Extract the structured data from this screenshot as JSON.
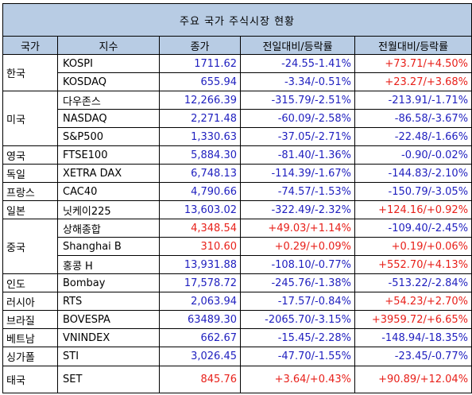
{
  "title": "주요 국가 주식시장 현황",
  "headers": [
    "국가",
    "지수",
    "종가",
    "전일대비/등락률",
    "전월대비/등락률"
  ],
  "colors": {
    "up": "#e8201a",
    "down": "#1f1fbf",
    "header_bg": "#b8cce4"
  },
  "rows": [
    {
      "country": "한국",
      "index": "KOSPI",
      "close": "1711.62",
      "close_dir": "down",
      "daily": "-24.55-1.41%",
      "daily_dir": "down",
      "monthly": "+73.71/+4.50%",
      "monthly_dir": "up"
    },
    {
      "country": "",
      "index": "KOSDAQ",
      "close": "655.94",
      "close_dir": "down",
      "daily": "-3.34/-0.51%",
      "daily_dir": "down",
      "monthly": "+23.27/+3.68%",
      "monthly_dir": "up"
    },
    {
      "country": "",
      "index": "다우존스",
      "close": "12,266.39",
      "close_dir": "down",
      "daily": "-315.79/-2.51%",
      "daily_dir": "down",
      "monthly": "-213.91/-1.71%",
      "monthly_dir": "down"
    },
    {
      "country": "미국",
      "index": "NASDAQ",
      "close": "2,271.48",
      "close_dir": "down",
      "daily": "-60.09/-2.58%",
      "daily_dir": "down",
      "monthly": "-86.58/-3.67%",
      "monthly_dir": "down"
    },
    {
      "country": "",
      "index": "S&P500",
      "close": "1,330.63",
      "close_dir": "down",
      "daily": "-37.05/-2.71%",
      "daily_dir": "down",
      "monthly": "-22.48/-1.66%",
      "monthly_dir": "down"
    },
    {
      "country": "영국",
      "index": "FTSE100",
      "close": "5,884.30",
      "close_dir": "down",
      "daily": "-81.40/-1.36%",
      "daily_dir": "down",
      "monthly": "-0.90/-0.02%",
      "monthly_dir": "down"
    },
    {
      "country": "독일",
      "index": "XETRA DAX",
      "close": "6,748.13",
      "close_dir": "down",
      "daily": "-114.39/-1.67%",
      "daily_dir": "down",
      "monthly": "-144.83/-2.10%",
      "monthly_dir": "down"
    },
    {
      "country": "프랑스",
      "index": "CAC40",
      "close": "4,790.66",
      "close_dir": "down",
      "daily": "-74.57/-1.53%",
      "daily_dir": "down",
      "monthly": "-150.79/-3.05%",
      "monthly_dir": "down"
    },
    {
      "country": "일본",
      "index": "닛케이225",
      "close": "13,603.02",
      "close_dir": "down",
      "daily": "-322.49/-2.32%",
      "daily_dir": "down",
      "monthly": "+124.16/+0.92%",
      "monthly_dir": "up"
    },
    {
      "country": "",
      "index": "상해종합",
      "close": "4,348.54",
      "close_dir": "up",
      "daily": "+49.03/+1.14%",
      "daily_dir": "up",
      "monthly": "-109.40/-2.45%",
      "monthly_dir": "down"
    },
    {
      "country": "중국",
      "index": "Shanghai B",
      "close": "310.60",
      "close_dir": "up",
      "daily": "+0.29/+0.09%",
      "daily_dir": "up",
      "monthly": "+0.19/+0.06%",
      "monthly_dir": "up"
    },
    {
      "country": "",
      "index": "홍콩 H",
      "close": "13,931.88",
      "close_dir": "down",
      "daily": "-108.10/-0.77%",
      "daily_dir": "down",
      "monthly": "+552.70/+4.13%",
      "monthly_dir": "up"
    },
    {
      "country": "인도",
      "index": "Bombay",
      "close": "17,578.72",
      "close_dir": "down",
      "daily": "-245.76/-1.38%",
      "daily_dir": "down",
      "monthly": "-513.22/-2.84%",
      "monthly_dir": "down"
    },
    {
      "country": "러시아",
      "index": "RTS",
      "close": "2,063.94",
      "close_dir": "down",
      "daily": "-17.57/-0.84%",
      "daily_dir": "down",
      "monthly": "+54.23/+2.70%",
      "monthly_dir": "up"
    },
    {
      "country": "브라질",
      "index": "BOVESPA",
      "close": "63489.30",
      "close_dir": "down",
      "daily": "-2065.70/-3.15%",
      "daily_dir": "down",
      "monthly": "+3959.72/+6.65%",
      "monthly_dir": "up"
    },
    {
      "country": "베트남",
      "index": "VNINDEX",
      "close": "662.67",
      "close_dir": "down",
      "daily": "-15.45/-2.28%",
      "daily_dir": "down",
      "monthly": "-148.94/-18.35%",
      "monthly_dir": "down"
    },
    {
      "country": "싱가폴",
      "index": "STI",
      "close": "3,026.45",
      "close_dir": "down",
      "daily": "-47.70/-1.55%",
      "daily_dir": "down",
      "monthly": "-23.45/-0.77%",
      "monthly_dir": "down"
    },
    {
      "country": "태국",
      "index": "SET",
      "close": "845.76",
      "close_dir": "up",
      "daily": "+3.64/+0.43%",
      "daily_dir": "up",
      "monthly": "+90.89/+12.04%",
      "monthly_dir": "up"
    }
  ]
}
